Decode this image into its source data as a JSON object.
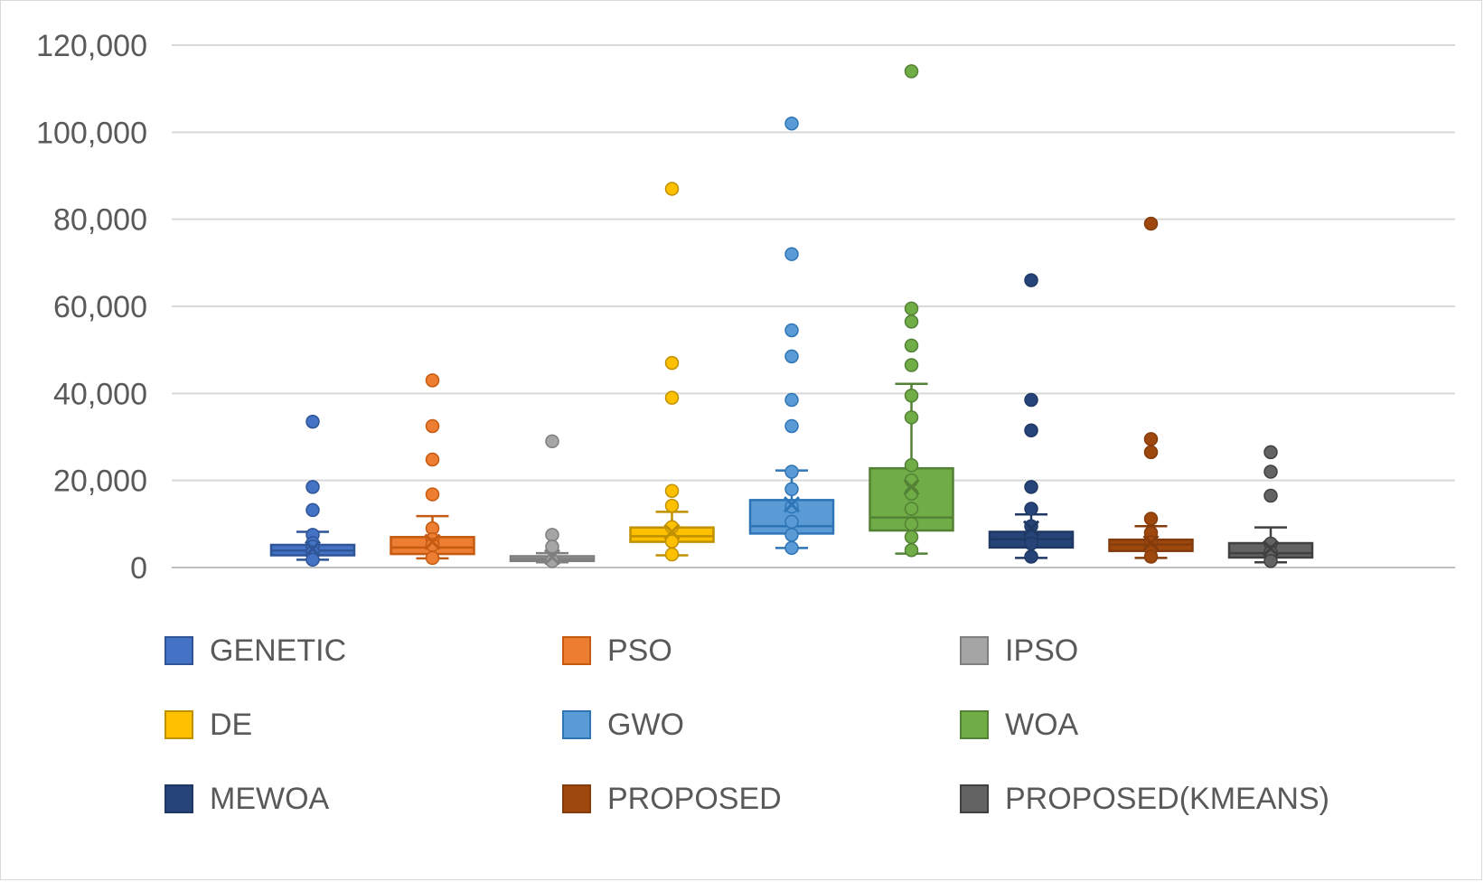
{
  "chart_data": {
    "type": "box",
    "title": "",
    "xlabel": "",
    "ylabel": "",
    "ylim": [
      0,
      120000
    ],
    "yticks": [
      0,
      20000,
      40000,
      60000,
      80000,
      100000,
      120000
    ],
    "ytick_labels": [
      "0",
      "20,000",
      "40,000",
      "60,000",
      "80,000",
      "100,000",
      "120,000"
    ],
    "grid": true,
    "legend_position": "bottom",
    "series": [
      {
        "name": "GENETIC",
        "color": "#4472C4",
        "border": "#2F5597",
        "min": 1800,
        "q1": 2800,
        "median": 3900,
        "q3": 5200,
        "max": 8200,
        "mean": 4300,
        "points": [
          33500,
          18500,
          13200,
          7500,
          5600,
          4800,
          3500,
          1800
        ]
      },
      {
        "name": "PSO",
        "color": "#ED7D31",
        "border": "#C55A11",
        "min": 2100,
        "q1": 3100,
        "median": 4600,
        "q3": 7000,
        "max": 11800,
        "mean": 5900,
        "points": [
          43000,
          32500,
          24800,
          16800,
          9000,
          6500,
          5200,
          2200
        ]
      },
      {
        "name": "IPSO",
        "color": "#A5A5A5",
        "border": "#7F7F7F",
        "min": 1200,
        "q1": 1500,
        "median": 2000,
        "q3": 2600,
        "max": 3300,
        "mean": 2400,
        "points": [
          29000,
          7500,
          4800,
          1500
        ]
      },
      {
        "name": "DE",
        "color": "#FFC000",
        "border": "#BF9000",
        "min": 2800,
        "q1": 5900,
        "median": 7200,
        "q3": 9200,
        "max": 12800,
        "mean": 8200,
        "points": [
          87000,
          47000,
          39000,
          17600,
          14200,
          9300,
          6000,
          3000
        ]
      },
      {
        "name": "GWO",
        "color": "#5B9BD5",
        "border": "#2E75B6",
        "min": 4500,
        "q1": 7800,
        "median": 9500,
        "q3": 15500,
        "max": 22300,
        "mean": 14500,
        "points": [
          102000,
          72000,
          54500,
          48500,
          38500,
          32500,
          22000,
          18000,
          14000,
          10500,
          7500,
          4500
        ]
      },
      {
        "name": "WOA",
        "color": "#70AD47",
        "border": "#538135",
        "min": 3200,
        "q1": 8500,
        "median": 11500,
        "q3": 22800,
        "max": 42200,
        "mean": 18500,
        "points": [
          114000,
          59500,
          56500,
          51000,
          46500,
          39500,
          34500,
          23500,
          20000,
          17000,
          13500,
          10000,
          7000,
          4000
        ]
      },
      {
        "name": "MEWOA",
        "color": "#264478",
        "border": "#1F3864",
        "min": 2200,
        "q1": 4600,
        "median": 6500,
        "q3": 8200,
        "max": 12200,
        "mean": 9000,
        "points": [
          66000,
          38500,
          31500,
          18500,
          13500,
          9500,
          7000,
          5500,
          2500
        ]
      },
      {
        "name": "PROPOSED",
        "color": "#9E480E",
        "border": "#843C0C",
        "min": 2200,
        "q1": 3800,
        "median": 5300,
        "q3": 6400,
        "max": 9500,
        "mean": 5600,
        "points": [
          79000,
          29500,
          26500,
          11200,
          8000,
          5800,
          4200,
          2500
        ]
      },
      {
        "name": "PROPOSED(KMEANS)",
        "color": "#636363",
        "border": "#404040",
        "min": 1200,
        "q1": 2300,
        "median": 3300,
        "q3": 5600,
        "max": 9200,
        "mean": 4400,
        "points": [
          26500,
          22000,
          16500,
          5500,
          3500,
          1500
        ]
      }
    ]
  }
}
